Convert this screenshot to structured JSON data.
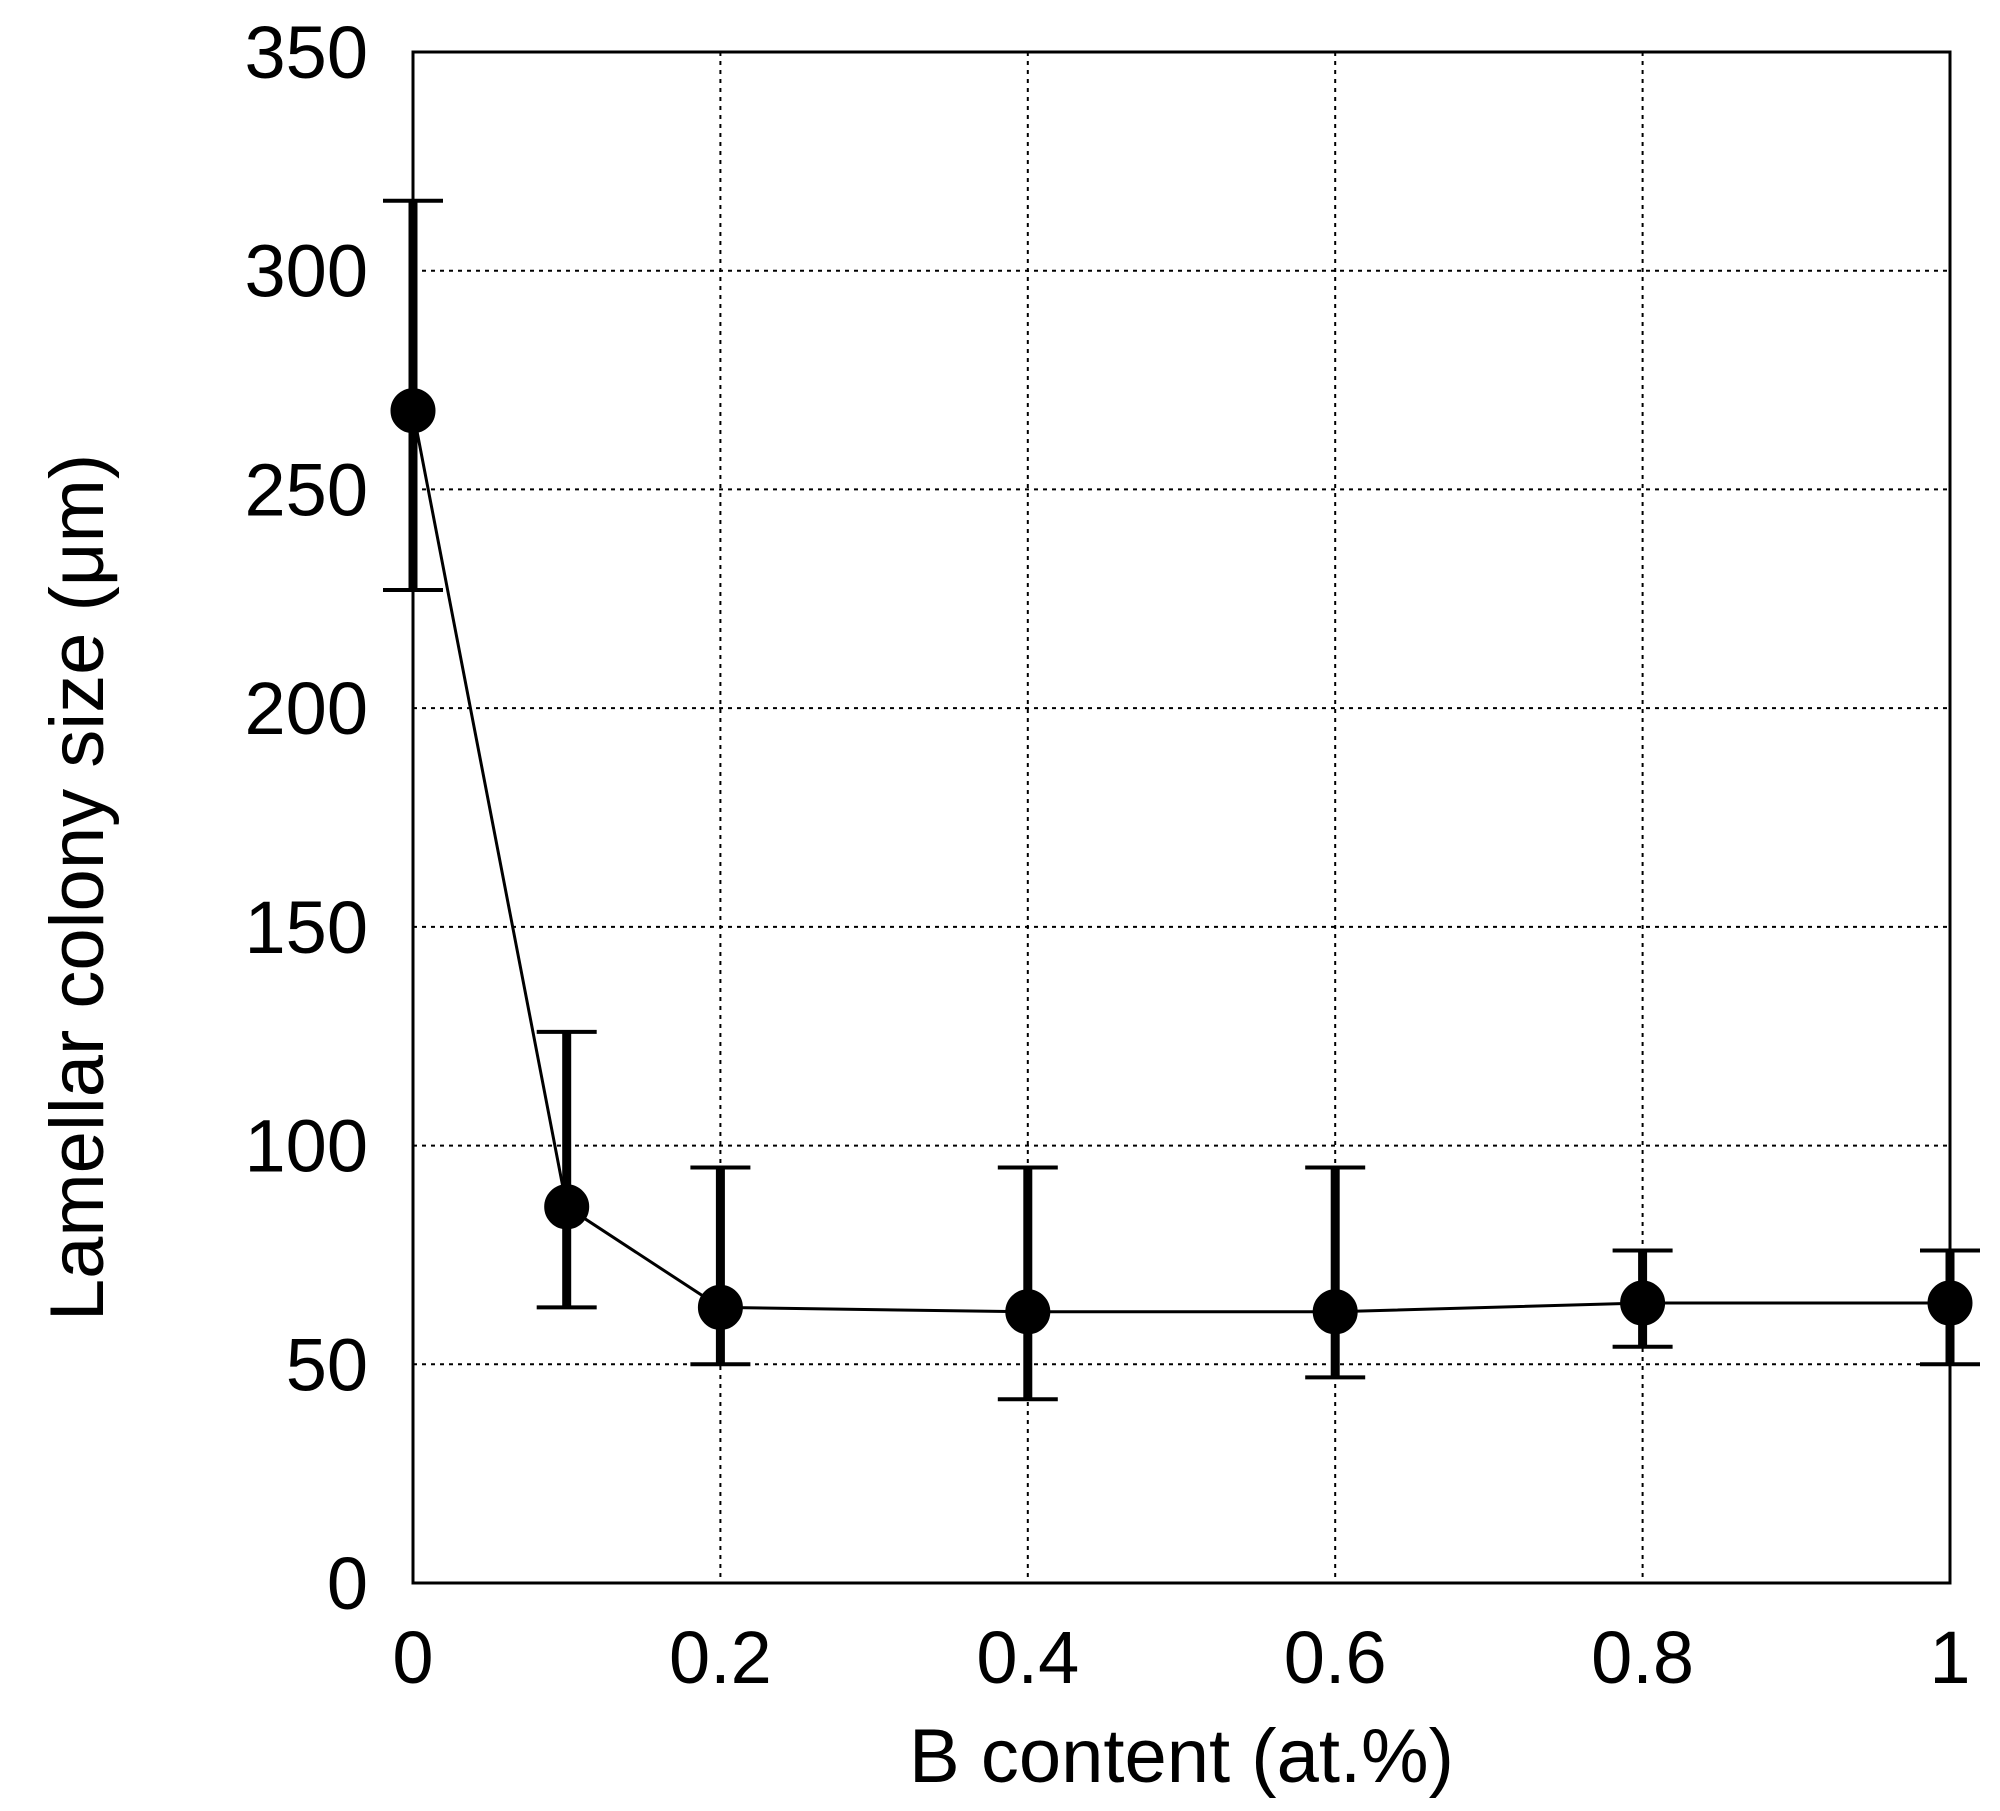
{
  "chart_data": {
    "type": "scatter",
    "xlabel": "B content (at.%)",
    "ylabel": "Lamellar colony size (μm)",
    "xlim": [
      0,
      1
    ],
    "ylim": [
      0,
      350
    ],
    "xticks": [
      "0",
      "0.2",
      "0.4",
      "0.6",
      "0.8",
      "1"
    ],
    "yticks": [
      "0",
      "50",
      "100",
      "150",
      "200",
      "250",
      "300",
      "350"
    ],
    "grid": true,
    "markers": "filled-circle",
    "lines": true,
    "series": [
      {
        "x": [
          0,
          0.1,
          0.2,
          0.4,
          0.6,
          0.8,
          1.0
        ],
        "y": [
          268,
          86,
          63,
          62,
          62,
          64,
          64
        ],
        "err_low": [
          227,
          63,
          50,
          42,
          47,
          54,
          50
        ],
        "err_high": [
          316,
          126,
          95,
          95,
          95,
          76,
          76
        ]
      }
    ]
  }
}
